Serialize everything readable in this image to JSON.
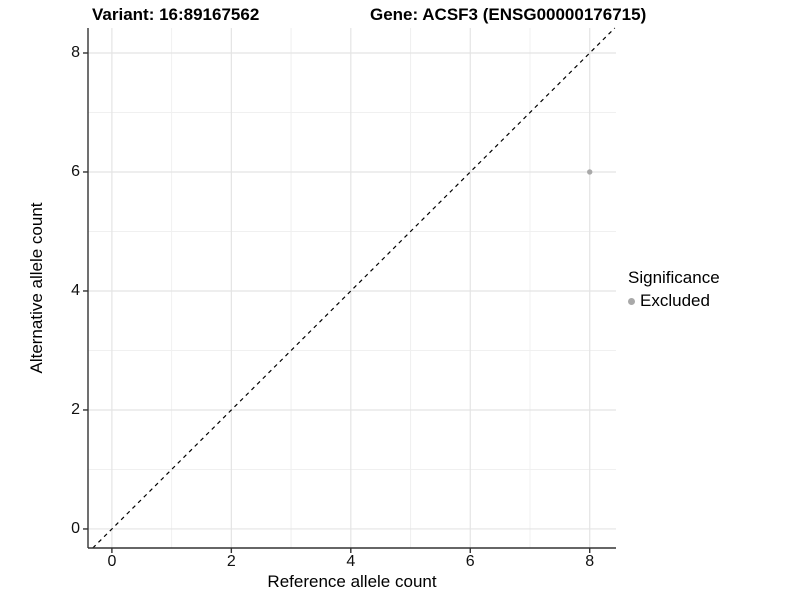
{
  "chart_data": {
    "type": "scatter",
    "titles": {
      "left": "Variant: 16:89167562",
      "right": "Gene: ACSF3 (ENSG00000176715)"
    },
    "xlabel": "Reference allele count",
    "ylabel": "Alternative allele count",
    "xlim": [
      -0.4,
      8.44
    ],
    "ylim": [
      -0.32,
      8.42
    ],
    "x_ticks": [
      0,
      2,
      4,
      6,
      8
    ],
    "y_ticks": [
      0,
      2,
      4,
      6,
      8
    ],
    "grid": {
      "major": true,
      "minor": true
    },
    "identity_line": {
      "style": "dashed",
      "color": "#000000"
    },
    "series": [
      {
        "name": "Excluded",
        "color": "#a9a9a9",
        "points": [
          {
            "x": 8,
            "y": 6
          }
        ]
      }
    ],
    "legend": {
      "position": "right",
      "title": "Significance",
      "entries": [
        {
          "label": "Excluded",
          "color": "#a9a9a9",
          "marker": "circle"
        }
      ]
    },
    "style": {
      "background": "#ffffff",
      "grid_major_color": "#e4e4e4",
      "grid_minor_color": "#f0f0f0",
      "axis_color": "#333333",
      "text_color": "#000000",
      "point_radius": 2.7
    }
  }
}
